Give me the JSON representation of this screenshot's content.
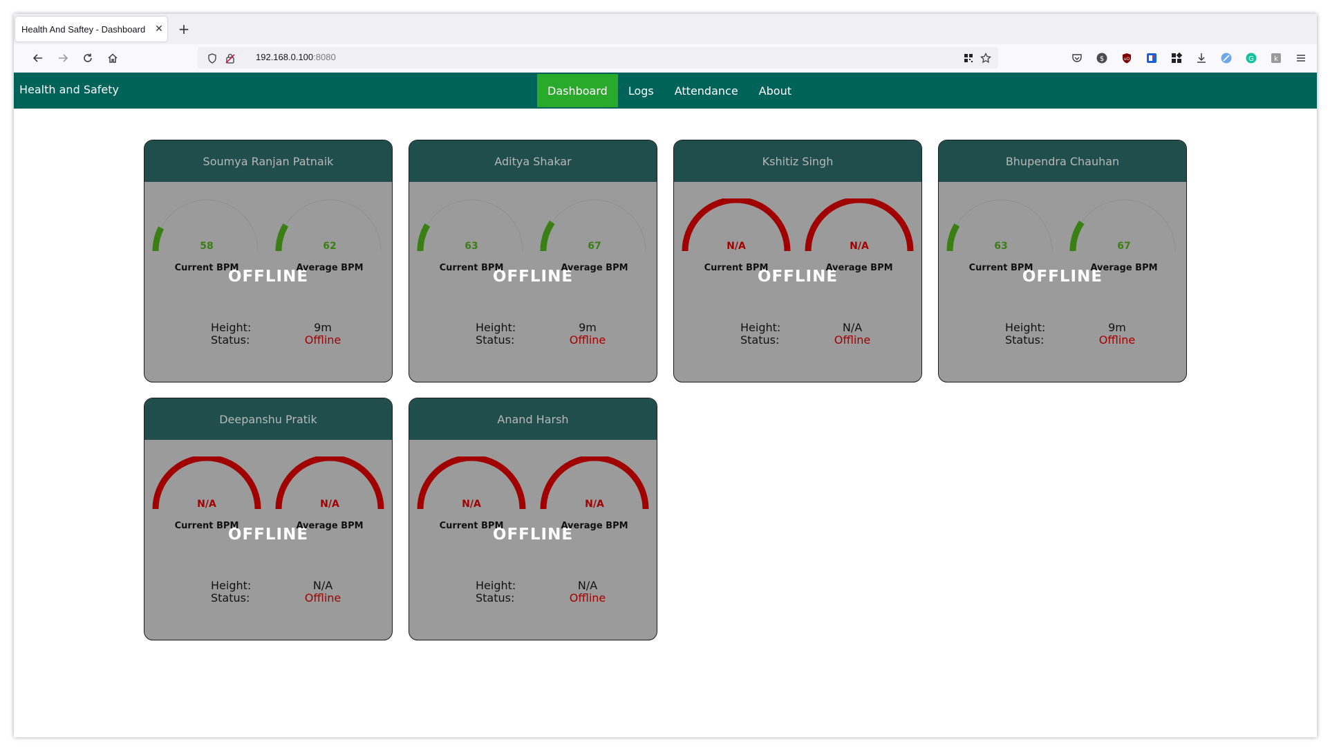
{
  "browser": {
    "tab_title": "Health And Saftey - Dashboard",
    "url_host": "192.168.0.100",
    "url_port": ":8080"
  },
  "app": {
    "brand": "Health and Safety",
    "nav": [
      {
        "label": "Dashboard",
        "active": true
      },
      {
        "label": "Logs",
        "active": false
      },
      {
        "label": "Attendance",
        "active": false
      },
      {
        "label": "About",
        "active": false
      }
    ]
  },
  "labels": {
    "current_bpm": "Current BPM",
    "average_bpm": "Average BPM",
    "height": "Height:",
    "status": "Status:"
  },
  "colors": {
    "gauge_ok": "#3a7f14",
    "gauge_na": "#a00000",
    "gauge_track": "#8f8f8f",
    "status_offline": "#a40000"
  },
  "workers": [
    {
      "name": "Soumya Ranjan Patnaik",
      "current_bpm": "58",
      "average_bpm": "62",
      "current_fill": 0.15,
      "average_fill": 0.17,
      "state": "OFFLINE",
      "height": "9m",
      "status": "Offline"
    },
    {
      "name": "Aditya Shakar",
      "current_bpm": "63",
      "average_bpm": "67",
      "current_fill": 0.17,
      "average_fill": 0.19,
      "state": "OFFLINE",
      "height": "9m",
      "status": "Offline"
    },
    {
      "name": "Kshitiz Singh",
      "current_bpm": "N/A",
      "average_bpm": "N/A",
      "current_fill": 1,
      "average_fill": 1,
      "state": "OFFLINE",
      "height": "N/A",
      "status": "Offline"
    },
    {
      "name": "Bhupendra Chauhan",
      "current_bpm": "63",
      "average_bpm": "67",
      "current_fill": 0.17,
      "average_fill": 0.19,
      "state": "OFFLINE",
      "height": "9m",
      "status": "Offline"
    },
    {
      "name": "Deepanshu Pratik",
      "current_bpm": "N/A",
      "average_bpm": "N/A",
      "current_fill": 1,
      "average_fill": 1,
      "state": "OFFLINE",
      "height": "N/A",
      "status": "Offline"
    },
    {
      "name": "Anand Harsh",
      "current_bpm": "N/A",
      "average_bpm": "N/A",
      "current_fill": 1,
      "average_fill": 1,
      "state": "OFFLINE",
      "height": "N/A",
      "status": "Offline"
    }
  ]
}
